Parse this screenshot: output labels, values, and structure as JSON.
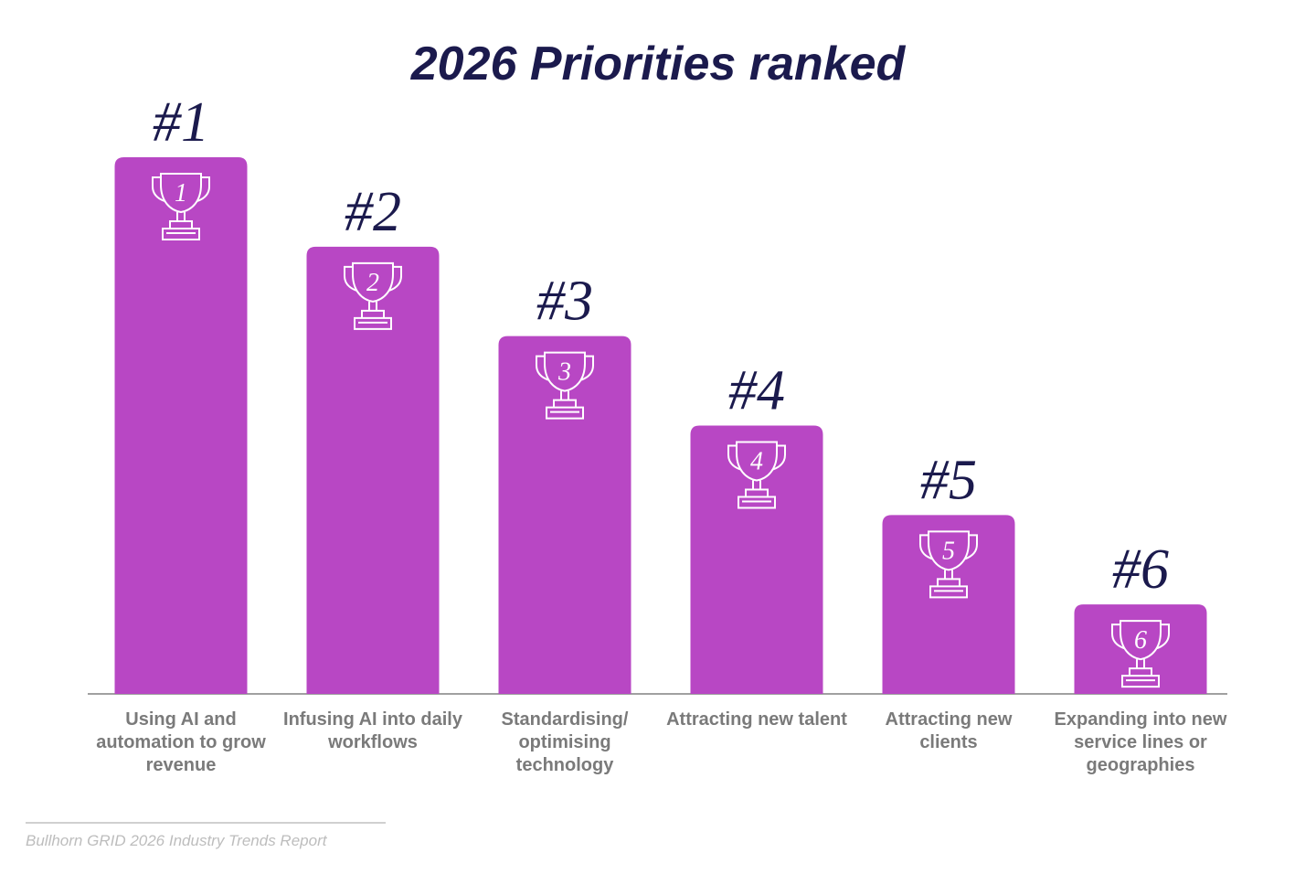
{
  "chart_data": {
    "type": "bar",
    "title": "2026 Priorities ranked",
    "categories": [
      "Using AI and automation to grow revenue",
      "Infusing AI into daily workflows",
      "Standardising/ optimising technology",
      "Attracting new talent",
      "Attracting new clients",
      "Expanding into new service lines or geographies"
    ],
    "values": [
      1,
      2,
      3,
      4,
      5,
      6
    ],
    "value_labels": [
      "#1",
      "#2",
      "#3",
      "#4",
      "#5",
      "#6"
    ],
    "color": "#b847c4",
    "ylim": [
      7,
      1
    ],
    "source": "Bullhorn GRID 2026 Industry Trends Report"
  }
}
